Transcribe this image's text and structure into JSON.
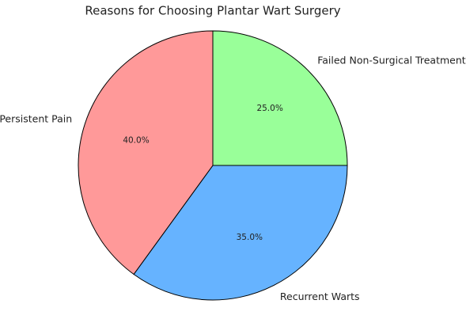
{
  "chart_data": {
    "type": "pie",
    "title": "Reasons for Choosing Plantar Wart Surgery",
    "categories": [
      "Failed Non-Surgical Treatments",
      "Recurrent Warts",
      "Persistent Pain"
    ],
    "values": [
      25,
      35,
      40
    ],
    "value_labels": [
      "25.0%",
      "35.0%",
      "40.0%"
    ],
    "colors": [
      "#99ff99",
      "#66b3ff",
      "#ff9999"
    ]
  }
}
